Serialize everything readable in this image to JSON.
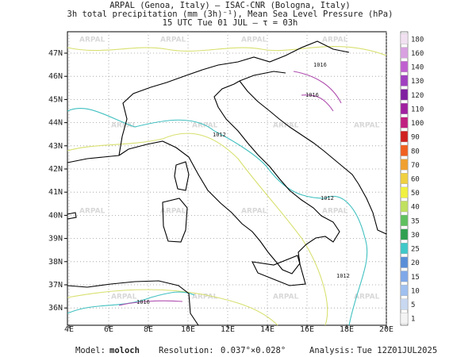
{
  "header": {
    "lines": [
      "ARPAL (Genoa, Italy)  –  ISAC-CNR (Bologna, Italy)",
      "3h total precipitation (mm (3h)⁻¹), Mean Sea Level Pressure (hPa)",
      "15 UTC Tue 01 JUL  –  τ = 03h"
    ]
  },
  "map": {
    "lat_labels": [
      "47N",
      "46N",
      "45N",
      "44N",
      "43N",
      "42N",
      "41N",
      "40N",
      "39N",
      "38N",
      "37N",
      "36N"
    ],
    "lon_labels": [
      "4E",
      "6E",
      "8E",
      "10E",
      "12E",
      "14E",
      "16E",
      "18E",
      "20E"
    ],
    "watermark": "ARPAL",
    "isobar_labels": [
      "1016",
      "1016",
      "1012",
      "1012",
      "1012",
      "1016"
    ]
  },
  "colorbar": {
    "labels": [
      1,
      5,
      10,
      15,
      20,
      25,
      30,
      35,
      40,
      50,
      60,
      70,
      80,
      90,
      100,
      110,
      120,
      130,
      140,
      160,
      180
    ],
    "colors": [
      "#f4f4f4",
      "#c8d8f0",
      "#a0c0f0",
      "#7fa8e8",
      "#5a8fd8",
      "#40c8c8",
      "#30a050",
      "#60c060",
      "#c0e060",
      "#f0f040",
      "#f0d040",
      "#f0a030",
      "#f06020",
      "#d02020",
      "#c02080",
      "#a020a0",
      "#8020a0",
      "#a040c0",
      "#c060d0",
      "#d8a0e0",
      "#f0e0f0"
    ]
  },
  "footer": {
    "model_label": "Model:",
    "model": "moloch",
    "resolution_label": "Resolution:",
    "resolution": "0.037°×0.028°",
    "analysis_label": "Analysis:",
    "analysis": "Tue 12Z01JUL2025"
  }
}
